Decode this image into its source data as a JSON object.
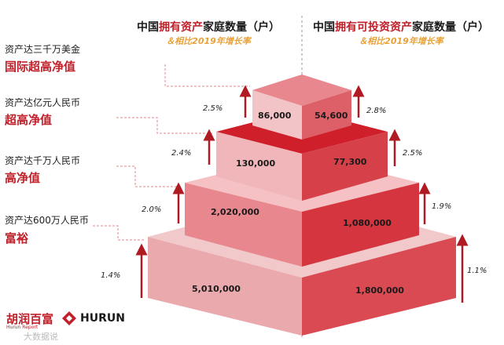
{
  "header_left": {
    "pre": "中国",
    "red": "拥有资产",
    "post": "家庭数量（户）",
    "sub": "＆相比2019年增长率"
  },
  "header_right": {
    "pre": "中国",
    "red": "拥有可投资资产",
    "post": "家庭数量（户）",
    "sub": "＆相比2019年增长率"
  },
  "tiers": [
    {
      "small": "资产达三千万美金",
      "big": "国际超高净值",
      "left_value": "86,000",
      "right_value": "54,600",
      "left_growth": "2.5%",
      "right_growth": "2.8%"
    },
    {
      "small": "资产达亿元人民币",
      "big": "超高净值",
      "left_value": "130,000",
      "right_value": "77,300",
      "left_growth": "2.4%",
      "right_growth": "2.5%"
    },
    {
      "small": "资产达千万人民币",
      "big": "高净值",
      "left_value": "2,020,000",
      "right_value": "1,080,000",
      "left_growth": "2.0%",
      "right_growth": "1.9%"
    },
    {
      "small": "资产达600万人民币",
      "big": "富裕",
      "left_value": "5,010,000",
      "right_value": "1,800,000",
      "left_growth": "1.4%",
      "right_growth": "1.1%"
    }
  ],
  "logo": {
    "cn": "胡润百富",
    "cn_sub": "Hurun Report",
    "en": "HURUN"
  },
  "watermark": "大数据说"
}
